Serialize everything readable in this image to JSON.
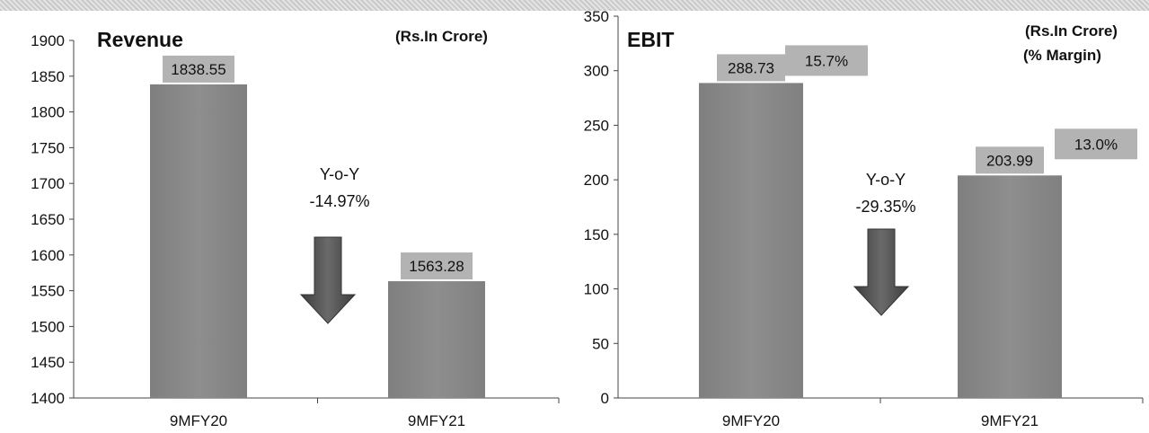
{
  "chart_data": [
    {
      "type": "bar",
      "title": "Revenue",
      "unit_note": "(Rs.In Crore)",
      "categories": [
        "9MFY20",
        "9MFY21"
      ],
      "values": [
        1838.55,
        1563.28
      ],
      "data_labels": [
        "1838.55",
        "1563.28"
      ],
      "ylim": [
        1400,
        1900
      ],
      "yticks": [
        1400,
        1450,
        1500,
        1550,
        1600,
        1650,
        1700,
        1750,
        1800,
        1850,
        1900
      ],
      "annotation": {
        "line1": "Y-o-Y",
        "line2": "-14.97%"
      },
      "grid": false
    },
    {
      "type": "bar",
      "title": "EBIT",
      "unit_note": "(Rs.In Crore)",
      "unit_note2": "(% Margin)",
      "categories": [
        "9MFY20",
        "9MFY21"
      ],
      "values": [
        288.73,
        203.99
      ],
      "data_labels": [
        "288.73",
        "203.99"
      ],
      "margin_labels": [
        "15.7%",
        "13.0%"
      ],
      "ylim": [
        0,
        350
      ],
      "yticks": [
        0,
        50,
        100,
        150,
        200,
        250,
        300,
        350
      ],
      "annotation": {
        "line1": "Y-o-Y",
        "line2": "-29.35%"
      },
      "grid": false
    }
  ],
  "colors": {
    "bar": "#8a8a8a",
    "label_box": "#b3b3b3",
    "arrow": "#555555"
  }
}
